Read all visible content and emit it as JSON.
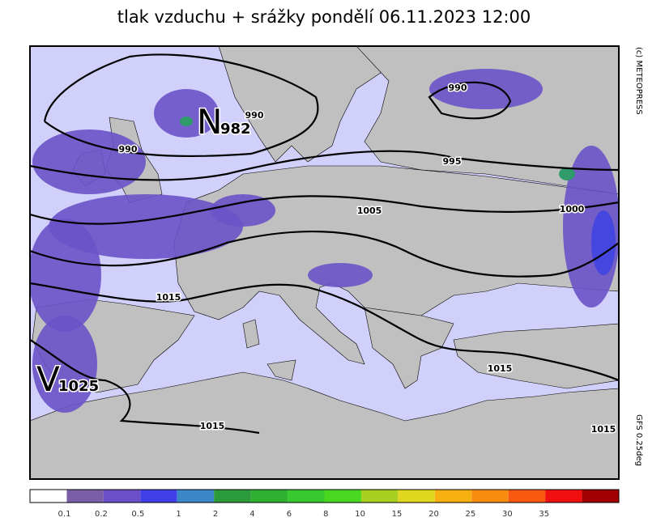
{
  "title": "tlak vzduchu + srážky pondělí 06.11.2023 12:00",
  "credits": {
    "top": "(c) METEOPRESS",
    "bottom": "GFS 0.25deg"
  },
  "pressure_centers": [
    {
      "letter": "N",
      "value": "982"
    },
    {
      "letter": "V",
      "value": "1025"
    }
  ],
  "isobar_labels": [
    "990",
    "990",
    "990",
    "995",
    "1005",
    "1000",
    "1015",
    "1015",
    "1015",
    "1015"
  ],
  "legend": {
    "labels": [
      "0.1",
      "0.2",
      "0.5",
      "1",
      "2",
      "4",
      "6",
      "8",
      "10",
      "15",
      "20",
      "25",
      "30",
      "35"
    ],
    "colors": [
      "#ffffff",
      "#7b5ea8",
      "#6a4fc8",
      "#4040e8",
      "#3a88c8",
      "#2a9a3a",
      "#30b030",
      "#38c830",
      "#48d820",
      "#a8d020",
      "#e0d820",
      "#f8b010",
      "#f88c10",
      "#f85810",
      "#f01010",
      "#a00000"
    ]
  }
}
